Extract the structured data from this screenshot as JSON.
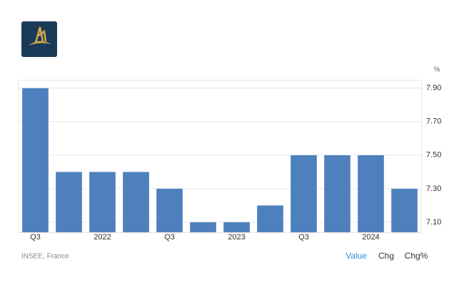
{
  "chart_data": {
    "type": "bar",
    "unit": "%",
    "categories": [
      "Q3",
      null,
      "2022",
      null,
      "Q3",
      null,
      "2023",
      null,
      "Q3",
      null,
      "2024",
      null
    ],
    "values": [
      7.9,
      7.4,
      7.4,
      7.4,
      7.3,
      7.1,
      7.1,
      7.2,
      7.5,
      7.5,
      7.5,
      7.3
    ],
    "color": "#4e80be",
    "ylim": [
      7.04,
      7.95
    ],
    "yticks": [
      {
        "value": 7.1,
        "label": "7.10"
      },
      {
        "value": 7.3,
        "label": "7.30"
      },
      {
        "value": 7.5,
        "label": "7.50"
      },
      {
        "value": 7.7,
        "label": "7.70"
      },
      {
        "value": 7.9,
        "label": "7.90"
      }
    ],
    "grid": true,
    "source": "INSEE, France",
    "buttons": [
      "Value",
      "Chg",
      "Chg%"
    ]
  }
}
